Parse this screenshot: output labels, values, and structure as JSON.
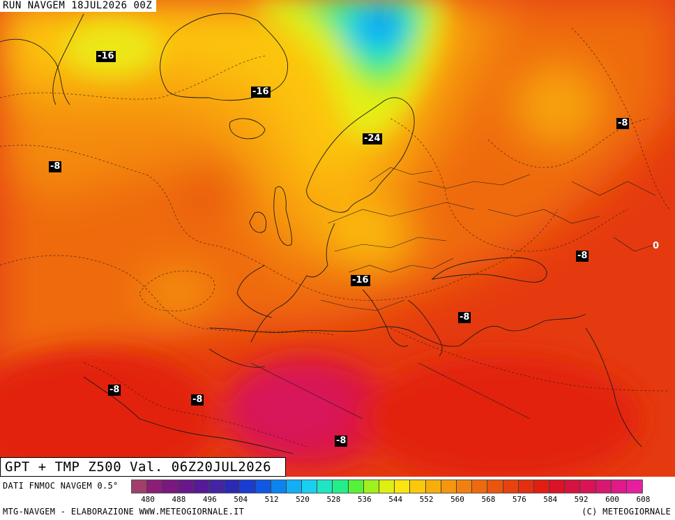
{
  "header": {
    "run_title": "RUN NAVGEM 18JUL2026 00Z"
  },
  "valid": {
    "label": "GPT + TMP Z500 Val. 06Z20JUL2026"
  },
  "temperature_labels": [
    "-16",
    "-16",
    "-8",
    "-24",
    "-8",
    "-16",
    "-8",
    "0",
    "-8",
    "-8",
    "-8",
    "-8"
  ],
  "colorbar": {
    "source": "DATI FNMOC NAVGEM 0.5°",
    "ticks": [
      "480",
      "488",
      "496",
      "504",
      "512",
      "520",
      "528",
      "536",
      "544",
      "552",
      "560",
      "568",
      "576",
      "584",
      "592",
      "600",
      "608"
    ],
    "colors": [
      "#a0406a",
      "#8c1e78",
      "#7a1882",
      "#6a168c",
      "#561a96",
      "#4424a2",
      "#2a2ab4",
      "#1a3cd0",
      "#1058e4",
      "#0c84f0",
      "#12aef6",
      "#1ad0f0",
      "#1ee6c4",
      "#24ee8a",
      "#56f23a",
      "#a0f01e",
      "#e0ee10",
      "#fce410",
      "#fcc80c",
      "#f8ae0a",
      "#f6960c",
      "#f2800e",
      "#ee6a0e",
      "#ea560e",
      "#e8420e",
      "#e4300e",
      "#e21e12",
      "#dc1226",
      "#d8123e",
      "#d81456",
      "#d6186e",
      "#e01a88",
      "#e81ea2"
    ]
  },
  "footer": {
    "left": "MTG-NAVGEM - ELABORAZIONE WWW.METEOGIORNALE.IT",
    "right": "(C) METEOGIORNALE"
  }
}
